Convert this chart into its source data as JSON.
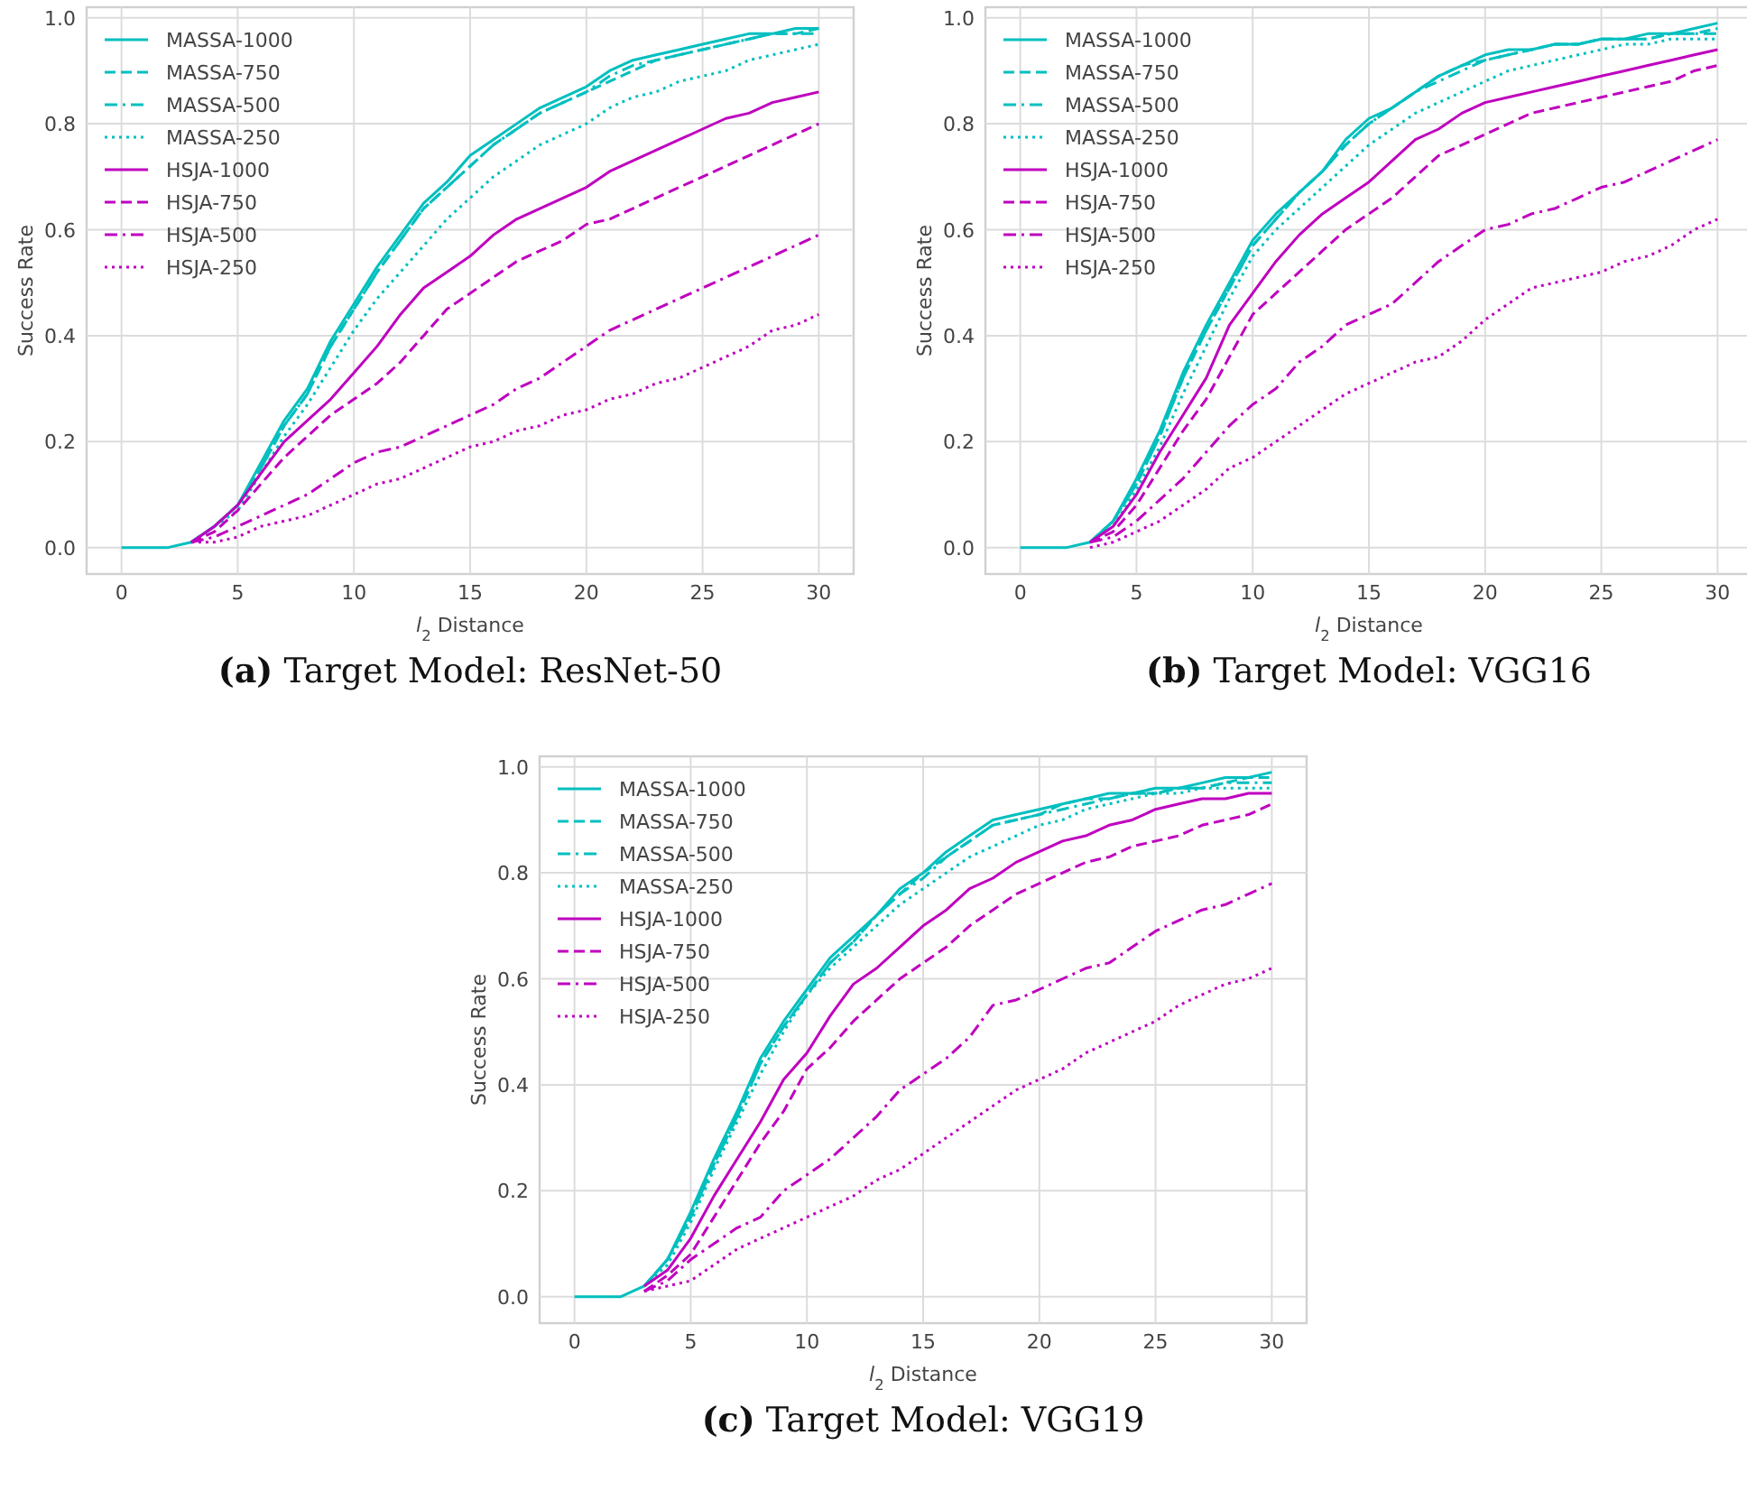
{
  "chart_data": [
    {
      "type": "line",
      "title": "(a) Target Model: ResNet-50",
      "xlabel": "l$_{2}$ Distance",
      "ylabel": "Success Rate",
      "x": [
        0,
        1,
        2,
        3,
        4,
        5,
        6,
        7,
        8,
        9,
        10,
        11,
        12,
        13,
        14,
        15,
        16,
        17,
        18,
        19,
        20,
        21,
        22,
        23,
        24,
        25,
        26,
        27,
        28,
        29,
        30
      ],
      "xlim": [
        -1.5,
        31.5
      ],
      "ylim": [
        -0.05,
        1.02
      ],
      "xticks": [
        0,
        5,
        10,
        15,
        20,
        25,
        30
      ],
      "yticks": [
        {
          "value": 0,
          "label": "0.0"
        },
        {
          "value": 0.2,
          "label": "0.2"
        },
        {
          "value": 0.4,
          "label": "0.4"
        },
        {
          "value": 0.6,
          "label": "0.6"
        },
        {
          "value": 0.8,
          "label": "0.8"
        },
        {
          "value": 1,
          "label": "1.0"
        }
      ],
      "grid": true,
      "legend": "top left",
      "series": [
        {
          "name": "MASSA-1000",
          "color": "#00bfbf",
          "line_style": "solid",
          "values": [
            0,
            0,
            0,
            0.01,
            0.04,
            0.08,
            0.16,
            0.24,
            0.3,
            0.39,
            0.46,
            0.53,
            0.59,
            0.65,
            0.69,
            0.74,
            0.77,
            0.8,
            0.83,
            0.85,
            0.87,
            0.9,
            0.92,
            0.93,
            0.94,
            0.95,
            0.96,
            0.97,
            0.97,
            0.98,
            0.98
          ]
        },
        {
          "name": "MASSA-750",
          "color": "#00bfbf",
          "line_style": "dashed",
          "values": [
            null,
            null,
            null,
            0.01,
            0.04,
            0.08,
            0.15,
            0.23,
            0.29,
            0.38,
            0.45,
            0.52,
            0.58,
            0.64,
            0.68,
            0.72,
            0.76,
            0.79,
            0.82,
            0.84,
            0.86,
            0.88,
            0.9,
            0.92,
            0.93,
            0.94,
            0.95,
            0.96,
            0.97,
            0.97,
            0.98
          ]
        },
        {
          "name": "MASSA-500",
          "color": "#00bfbf",
          "line_style": "dashdot",
          "values": [
            null,
            null,
            null,
            0.01,
            0.04,
            0.08,
            0.15,
            0.23,
            0.29,
            0.38,
            0.45,
            0.52,
            0.58,
            0.64,
            0.68,
            0.72,
            0.76,
            0.79,
            0.82,
            0.84,
            0.86,
            0.89,
            0.91,
            0.92,
            0.93,
            0.94,
            0.95,
            0.96,
            0.97,
            0.97,
            0.97
          ]
        },
        {
          "name": "MASSA-250",
          "color": "#00bfbf",
          "line_style": "dotted",
          "values": [
            null,
            null,
            null,
            0.01,
            0.04,
            0.07,
            0.14,
            0.21,
            0.27,
            0.34,
            0.41,
            0.47,
            0.52,
            0.57,
            0.62,
            0.66,
            0.7,
            0.73,
            0.76,
            0.78,
            0.8,
            0.83,
            0.85,
            0.86,
            0.88,
            0.89,
            0.9,
            0.92,
            0.93,
            0.94,
            0.95
          ]
        },
        {
          "name": "HSJA-1000",
          "color": "#bf00bf",
          "line_style": "solid",
          "values": [
            null,
            null,
            null,
            0.01,
            0.04,
            0.08,
            0.14,
            0.2,
            0.24,
            0.28,
            0.33,
            0.38,
            0.44,
            0.49,
            0.52,
            0.55,
            0.59,
            0.62,
            0.64,
            0.66,
            0.68,
            0.71,
            0.73,
            0.75,
            0.77,
            0.79,
            0.81,
            0.82,
            0.84,
            0.85,
            0.86
          ]
        },
        {
          "name": "HSJA-750",
          "color": "#bf00bf",
          "line_style": "dashed",
          "values": [
            null,
            null,
            null,
            0.01,
            0.03,
            0.07,
            0.12,
            0.17,
            0.21,
            0.25,
            0.28,
            0.31,
            0.35,
            0.4,
            0.45,
            0.48,
            0.51,
            0.54,
            0.56,
            0.58,
            0.61,
            0.62,
            0.64,
            0.66,
            0.68,
            0.7,
            0.72,
            0.74,
            0.76,
            0.78,
            0.8
          ]
        },
        {
          "name": "HSJA-500",
          "color": "#bf00bf",
          "line_style": "dashdot",
          "values": [
            null,
            null,
            null,
            0.01,
            0.02,
            0.04,
            0.06,
            0.08,
            0.1,
            0.13,
            0.16,
            0.18,
            0.19,
            0.21,
            0.23,
            0.25,
            0.27,
            0.3,
            0.32,
            0.35,
            0.38,
            0.41,
            0.43,
            0.45,
            0.47,
            0.49,
            0.51,
            0.53,
            0.55,
            0.57,
            0.59
          ]
        },
        {
          "name": "HSJA-250",
          "color": "#bf00bf",
          "line_style": "dotted",
          "values": [
            null,
            null,
            null,
            0.01,
            0.01,
            0.02,
            0.04,
            0.05,
            0.06,
            0.08,
            0.1,
            0.12,
            0.13,
            0.15,
            0.17,
            0.19,
            0.2,
            0.22,
            0.23,
            0.25,
            0.26,
            0.28,
            0.29,
            0.31,
            0.32,
            0.34,
            0.36,
            0.38,
            0.41,
            0.42,
            0.44
          ]
        }
      ]
    },
    {
      "type": "line",
      "title": "(b) Target Model: VGG16",
      "xlabel": "l$_{2}$ Distance",
      "ylabel": "Success Rate",
      "x": [
        0,
        1,
        2,
        3,
        4,
        5,
        6,
        7,
        8,
        9,
        10,
        11,
        12,
        13,
        14,
        15,
        16,
        17,
        18,
        19,
        20,
        21,
        22,
        23,
        24,
        25,
        26,
        27,
        28,
        29,
        30
      ],
      "xlim": [
        -1.5,
        31.5
      ],
      "ylim": [
        -0.05,
        1.02
      ],
      "xticks": [
        0,
        5,
        10,
        15,
        20,
        25,
        30
      ],
      "yticks": [
        {
          "value": 0,
          "label": "0.0"
        },
        {
          "value": 0.2,
          "label": "0.2"
        },
        {
          "value": 0.4,
          "label": "0.4"
        },
        {
          "value": 0.6,
          "label": "0.6"
        },
        {
          "value": 0.8,
          "label": "0.8"
        },
        {
          "value": 1,
          "label": "1.0"
        }
      ],
      "grid": true,
      "legend": "top left",
      "series": [
        {
          "name": "MASSA-1000",
          "color": "#00bfbf",
          "line_style": "solid",
          "values": [
            0,
            0,
            0,
            0.01,
            0.05,
            0.13,
            0.22,
            0.33,
            0.42,
            0.5,
            0.58,
            0.63,
            0.67,
            0.71,
            0.77,
            0.81,
            0.83,
            0.86,
            0.89,
            0.91,
            0.93,
            0.94,
            0.94,
            0.95,
            0.95,
            0.96,
            0.96,
            0.97,
            0.97,
            0.98,
            0.99
          ]
        },
        {
          "name": "MASSA-750",
          "color": "#00bfbf",
          "line_style": "dashed",
          "values": [
            null,
            null,
            null,
            0.01,
            0.05,
            0.12,
            0.21,
            0.32,
            0.41,
            0.49,
            0.57,
            0.62,
            0.67,
            0.71,
            0.76,
            0.8,
            0.83,
            0.86,
            0.89,
            0.91,
            0.92,
            0.93,
            0.94,
            0.95,
            0.95,
            0.96,
            0.96,
            0.96,
            0.97,
            0.97,
            0.98
          ]
        },
        {
          "name": "MASSA-500",
          "color": "#00bfbf",
          "line_style": "dashdot",
          "values": [
            null,
            null,
            null,
            0.01,
            0.05,
            0.12,
            0.21,
            0.32,
            0.41,
            0.49,
            0.57,
            0.62,
            0.67,
            0.71,
            0.76,
            0.8,
            0.83,
            0.86,
            0.88,
            0.9,
            0.92,
            0.93,
            0.94,
            0.95,
            0.95,
            0.96,
            0.96,
            0.96,
            0.97,
            0.97,
            0.97
          ]
        },
        {
          "name": "MASSA-250",
          "color": "#00bfbf",
          "line_style": "dotted",
          "values": [
            null,
            null,
            null,
            0.01,
            0.04,
            0.11,
            0.19,
            0.29,
            0.38,
            0.47,
            0.55,
            0.6,
            0.64,
            0.68,
            0.72,
            0.76,
            0.79,
            0.82,
            0.84,
            0.86,
            0.88,
            0.9,
            0.91,
            0.92,
            0.93,
            0.94,
            0.95,
            0.95,
            0.96,
            0.96,
            0.96
          ]
        },
        {
          "name": "HSJA-1000",
          "color": "#bf00bf",
          "line_style": "solid",
          "values": [
            null,
            null,
            null,
            0.01,
            0.04,
            0.1,
            0.18,
            0.25,
            0.32,
            0.42,
            0.48,
            0.54,
            0.59,
            0.63,
            0.66,
            0.69,
            0.73,
            0.77,
            0.79,
            0.82,
            0.84,
            0.85,
            0.86,
            0.87,
            0.88,
            0.89,
            0.9,
            0.91,
            0.92,
            0.93,
            0.94
          ]
        },
        {
          "name": "HSJA-750",
          "color": "#bf00bf",
          "line_style": "dashed",
          "values": [
            null,
            null,
            null,
            0.01,
            0.03,
            0.08,
            0.15,
            0.22,
            0.28,
            0.36,
            0.44,
            0.48,
            0.52,
            0.56,
            0.6,
            0.63,
            0.66,
            0.7,
            0.74,
            0.76,
            0.78,
            0.8,
            0.82,
            0.83,
            0.84,
            0.85,
            0.86,
            0.87,
            0.88,
            0.9,
            0.91
          ]
        },
        {
          "name": "HSJA-500",
          "color": "#bf00bf",
          "line_style": "dashdot",
          "values": [
            null,
            null,
            null,
            0.01,
            0.02,
            0.05,
            0.09,
            0.13,
            0.18,
            0.23,
            0.27,
            0.3,
            0.35,
            0.38,
            0.42,
            0.44,
            0.46,
            0.5,
            0.54,
            0.57,
            0.6,
            0.61,
            0.63,
            0.64,
            0.66,
            0.68,
            0.69,
            0.71,
            0.73,
            0.75,
            0.77
          ]
        },
        {
          "name": "HSJA-250",
          "color": "#bf00bf",
          "line_style": "dotted",
          "values": [
            null,
            null,
            null,
            0,
            0.01,
            0.03,
            0.05,
            0.08,
            0.11,
            0.15,
            0.17,
            0.2,
            0.23,
            0.26,
            0.29,
            0.31,
            0.33,
            0.35,
            0.36,
            0.39,
            0.43,
            0.46,
            0.49,
            0.5,
            0.51,
            0.52,
            0.54,
            0.55,
            0.57,
            0.6,
            0.62
          ]
        }
      ]
    },
    {
      "type": "line",
      "title": "(c) Target Model: VGG19",
      "xlabel": "l$_{2}$ Distance",
      "ylabel": "Success Rate",
      "x": [
        0,
        1,
        2,
        3,
        4,
        5,
        6,
        7,
        8,
        9,
        10,
        11,
        12,
        13,
        14,
        15,
        16,
        17,
        18,
        19,
        20,
        21,
        22,
        23,
        24,
        25,
        26,
        27,
        28,
        29,
        30
      ],
      "xlim": [
        -1.5,
        31.5
      ],
      "ylim": [
        -0.05,
        1.02
      ],
      "xticks": [
        0,
        5,
        10,
        15,
        20,
        25,
        30
      ],
      "yticks": [
        {
          "value": 0,
          "label": "0.0"
        },
        {
          "value": 0.2,
          "label": "0.2"
        },
        {
          "value": 0.4,
          "label": "0.4"
        },
        {
          "value": 0.6,
          "label": "0.6"
        },
        {
          "value": 0.8,
          "label": "0.8"
        },
        {
          "value": 1,
          "label": "1.0"
        }
      ],
      "grid": true,
      "legend": "top left",
      "series": [
        {
          "name": "MASSA-1000",
          "color": "#00bfbf",
          "line_style": "solid",
          "values": [
            0,
            0,
            0,
            0.02,
            0.07,
            0.16,
            0.26,
            0.35,
            0.45,
            0.52,
            0.58,
            0.64,
            0.68,
            0.72,
            0.77,
            0.8,
            0.84,
            0.87,
            0.9,
            0.91,
            0.92,
            0.93,
            0.94,
            0.95,
            0.95,
            0.96,
            0.96,
            0.97,
            0.98,
            0.98,
            0.99
          ]
        },
        {
          "name": "MASSA-750",
          "color": "#00bfbf",
          "line_style": "dashed",
          "values": [
            null,
            null,
            null,
            0.02,
            0.07,
            0.15,
            0.25,
            0.34,
            0.44,
            0.51,
            0.57,
            0.63,
            0.67,
            0.72,
            0.76,
            0.8,
            0.83,
            0.86,
            0.89,
            0.9,
            0.91,
            0.93,
            0.94,
            0.94,
            0.95,
            0.95,
            0.96,
            0.96,
            0.97,
            0.98,
            0.98
          ]
        },
        {
          "name": "MASSA-500",
          "color": "#00bfbf",
          "line_style": "dashdot",
          "values": [
            null,
            null,
            null,
            0.02,
            0.07,
            0.15,
            0.25,
            0.34,
            0.44,
            0.51,
            0.57,
            0.63,
            0.67,
            0.72,
            0.76,
            0.79,
            0.83,
            0.86,
            0.89,
            0.9,
            0.91,
            0.92,
            0.93,
            0.94,
            0.95,
            0.95,
            0.96,
            0.96,
            0.97,
            0.97,
            0.97
          ]
        },
        {
          "name": "MASSA-250",
          "color": "#00bfbf",
          "line_style": "dotted",
          "values": [
            null,
            null,
            null,
            0.02,
            0.06,
            0.14,
            0.24,
            0.33,
            0.42,
            0.5,
            0.57,
            0.62,
            0.66,
            0.7,
            0.74,
            0.77,
            0.8,
            0.83,
            0.85,
            0.87,
            0.89,
            0.9,
            0.92,
            0.93,
            0.94,
            0.95,
            0.95,
            0.96,
            0.96,
            0.96,
            0.96
          ]
        },
        {
          "name": "HSJA-1000",
          "color": "#bf00bf",
          "line_style": "solid",
          "values": [
            null,
            null,
            null,
            0.02,
            0.05,
            0.11,
            0.19,
            0.26,
            0.33,
            0.41,
            0.46,
            0.53,
            0.59,
            0.62,
            0.66,
            0.7,
            0.73,
            0.77,
            0.79,
            0.82,
            0.84,
            0.86,
            0.87,
            0.89,
            0.9,
            0.92,
            0.93,
            0.94,
            0.94,
            0.95,
            0.95
          ]
        },
        {
          "name": "HSJA-750",
          "color": "#bf00bf",
          "line_style": "dashed",
          "values": [
            null,
            null,
            null,
            0.01,
            0.04,
            0.08,
            0.15,
            0.22,
            0.29,
            0.35,
            0.43,
            0.47,
            0.52,
            0.56,
            0.6,
            0.63,
            0.66,
            0.7,
            0.73,
            0.76,
            0.78,
            0.8,
            0.82,
            0.83,
            0.85,
            0.86,
            0.87,
            0.89,
            0.9,
            0.91,
            0.93
          ]
        },
        {
          "name": "HSJA-500",
          "color": "#bf00bf",
          "line_style": "dashdot",
          "values": [
            null,
            null,
            null,
            0.01,
            0.03,
            0.07,
            0.1,
            0.13,
            0.15,
            0.2,
            0.23,
            0.26,
            0.3,
            0.34,
            0.39,
            0.42,
            0.45,
            0.49,
            0.55,
            0.56,
            0.58,
            0.6,
            0.62,
            0.63,
            0.66,
            0.69,
            0.71,
            0.73,
            0.74,
            0.76,
            0.78
          ]
        },
        {
          "name": "HSJA-250",
          "color": "#bf00bf",
          "line_style": "dotted",
          "values": [
            null,
            null,
            null,
            0.01,
            0.02,
            0.03,
            0.06,
            0.09,
            0.11,
            0.13,
            0.15,
            0.17,
            0.19,
            0.22,
            0.24,
            0.27,
            0.3,
            0.33,
            0.36,
            0.39,
            0.41,
            0.43,
            0.46,
            0.48,
            0.5,
            0.52,
            0.55,
            0.57,
            0.59,
            0.6,
            0.62
          ]
        }
      ]
    }
  ]
}
